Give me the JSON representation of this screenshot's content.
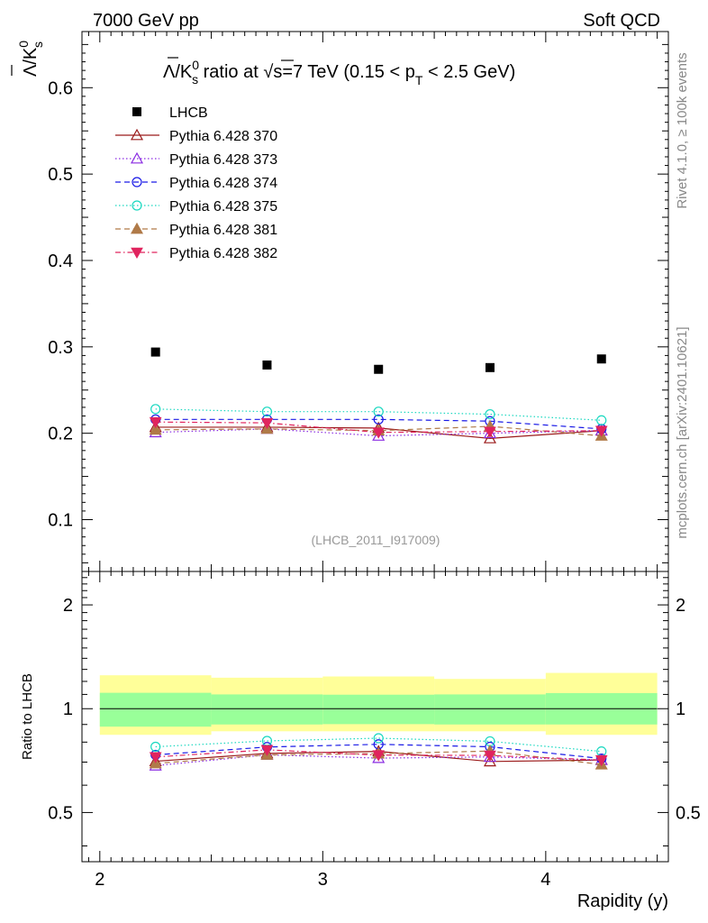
{
  "header": {
    "left": "7000 GeV pp",
    "right": "Soft QCD"
  },
  "side_labels": {
    "rivet": "Rivet 4.1.0, ≥ 100k events",
    "mcplots": "mcplots.cern.ch [arXiv:2401.10621]"
  },
  "watermark": "(LHCB_2011_I917009)",
  "chart_data": {
    "type": "scatter",
    "title": "Λ̅/K⁰ₛ ratio at √s=7 TeV (0.15 < p_T < 2.5 GeV)",
    "title_parts": {
      "ratio": "/K",
      "mid": " ratio at ",
      "root": "√",
      "energy": "s=7 TeV (0.15 < p",
      "sub_t": "T",
      "tail": " < 2.5 GeV)",
      "sup0": "0",
      "subs": "s",
      "lambda": "Λ"
    },
    "ylabel_top": {
      "lambda": "Λ",
      "slash_k": "/K",
      "sup": "0",
      "sub": "s"
    },
    "xlabel": "Rapidity (y)",
    "ylabel_ratio": "Ratio to LHCB",
    "xlim": [
      1.92,
      4.55
    ],
    "ylim": [
      0.04,
      0.665
    ],
    "ratio_ylim": [
      0.36,
      2.5
    ],
    "x_ticks": [
      "2",
      "3",
      "4"
    ],
    "y_ticks": [
      "0.1",
      "0.2",
      "0.3",
      "0.4",
      "0.5",
      "0.6"
    ],
    "ratio_ticks": [
      "0.5",
      "1",
      "2"
    ],
    "x": [
      2.25,
      2.75,
      3.25,
      3.75,
      4.25
    ],
    "bins": [
      [
        2.0,
        2.5
      ],
      [
        2.5,
        3.0
      ],
      [
        3.0,
        3.5
      ],
      [
        3.5,
        4.0
      ],
      [
        4.0,
        4.5
      ]
    ],
    "data_series": {
      "name": "LHCB",
      "values": [
        0.294,
        0.279,
        0.274,
        0.276,
        0.286
      ]
    },
    "data_band_green": [
      [
        0.887,
        1.112
      ],
      [
        0.9,
        1.1
      ],
      [
        0.902,
        1.098
      ],
      [
        0.9,
        1.1
      ],
      [
        0.9,
        1.11
      ]
    ],
    "data_band_yellow": [
      [
        0.84,
        1.25
      ],
      [
        0.86,
        1.23
      ],
      [
        0.86,
        1.24
      ],
      [
        0.86,
        1.22
      ],
      [
        0.84,
        1.27
      ]
    ],
    "series": [
      {
        "name": "Pythia 6.428 370",
        "color": "#9b1b1b",
        "marker": "triangle-open",
        "dash": "",
        "values": [
          0.207,
          0.207,
          0.206,
          0.194,
          0.203
        ]
      },
      {
        "name": "Pythia 6.428 373",
        "color": "#8a2be2",
        "marker": "triangle-open",
        "dash": "1.5,2.5",
        "values": [
          0.201,
          0.205,
          0.197,
          0.2,
          0.203
        ]
      },
      {
        "name": "Pythia 6.428 374",
        "color": "#1a1ae6",
        "marker": "circle-open",
        "dash": "6,4",
        "values": [
          0.216,
          0.216,
          0.216,
          0.214,
          0.205
        ]
      },
      {
        "name": "Pythia 6.428 375",
        "color": "#1ad8c0",
        "marker": "circle-open",
        "dash": "1.5,2.5",
        "values": [
          0.228,
          0.225,
          0.225,
          0.222,
          0.215
        ]
      },
      {
        "name": "Pythia 6.428 381",
        "color": "#b07a48",
        "marker": "triangle-filled",
        "dash": "6,4",
        "values": [
          0.204,
          0.205,
          0.203,
          0.208,
          0.197
        ]
      },
      {
        "name": "Pythia 6.428 382",
        "color": "#e0245e",
        "marker": "triangle-down-filled",
        "dash": "6,3,1.5,3",
        "values": [
          0.213,
          0.212,
          0.201,
          0.202,
          0.203
        ]
      }
    ]
  }
}
